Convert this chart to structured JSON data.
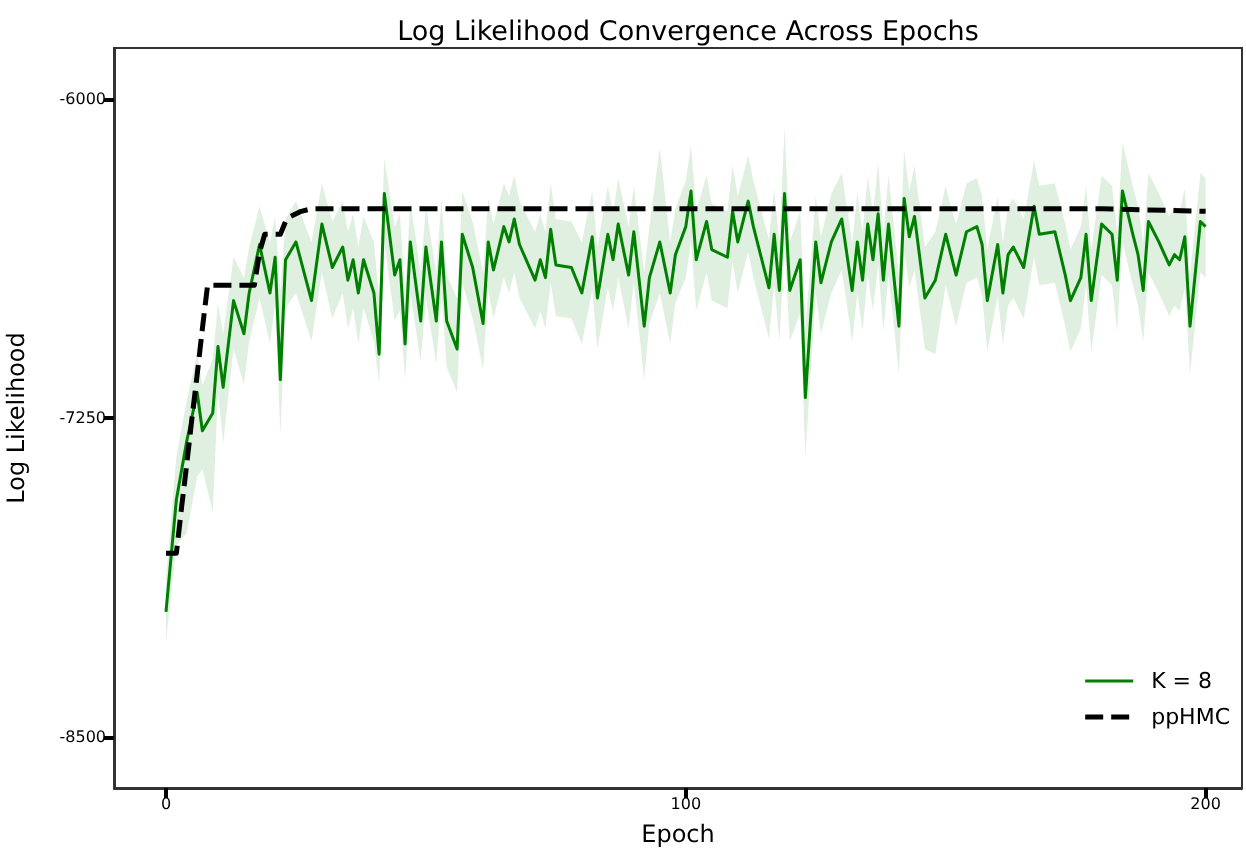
{
  "chart_data": {
    "type": "line",
    "title": "Log Likelihood Convergence Across Epochs",
    "xlabel": "Epoch",
    "ylabel": "Log Likelihood",
    "xlim": [
      -10,
      207
    ],
    "ylim": [
      -8700,
      -5800
    ],
    "xticks": [
      0,
      100,
      200
    ],
    "yticks": [
      -8500,
      -7250,
      -6000
    ],
    "legend": "bottom right",
    "series": [
      {
        "name": "K = 8",
        "color": "#008000",
        "line_style": "solid",
        "x": [
          0,
          2,
          4,
          6,
          7,
          9,
          10,
          11,
          13,
          15,
          16,
          18,
          20,
          21,
          22,
          23,
          25,
          28,
          30,
          32,
          34,
          35,
          36,
          37,
          38,
          40,
          41,
          42,
          44,
          45,
          46,
          47,
          49,
          50,
          52,
          53,
          54,
          56,
          57,
          59,
          61,
          62,
          63,
          65,
          66,
          67,
          68,
          71,
          72,
          73,
          74,
          75,
          78,
          80,
          82,
          83,
          85,
          86,
          87,
          89,
          90,
          92,
          93,
          95,
          97,
          98,
          100,
          101,
          102,
          104,
          105,
          108,
          109,
          110,
          112,
          113,
          116,
          117,
          118,
          119,
          120,
          122,
          123,
          125,
          126,
          128,
          130,
          132,
          133,
          134,
          135,
          136,
          137,
          138,
          139,
          141,
          142,
          143,
          144,
          146,
          148,
          150,
          151,
          152,
          154,
          156,
          157,
          158,
          160,
          161,
          162,
          163,
          165,
          167,
          168,
          171,
          173,
          174,
          176,
          177,
          178,
          180,
          182,
          183,
          184,
          186,
          187,
          188,
          189,
          191,
          193,
          194,
          195,
          196,
          197,
          199,
          200
        ],
        "values": [
          -8010,
          -7570,
          -7340,
          -7150,
          -7300,
          -7230,
          -6970,
          -7130,
          -6790,
          -6920,
          -6760,
          -6570,
          -6760,
          -6620,
          -7100,
          -6630,
          -6560,
          -6790,
          -6490,
          -6660,
          -6580,
          -6710,
          -6630,
          -6760,
          -6630,
          -6760,
          -7000,
          -6370,
          -6690,
          -6630,
          -6960,
          -6560,
          -6870,
          -6580,
          -6870,
          -6560,
          -6870,
          -6980,
          -6530,
          -6660,
          -6880,
          -6560,
          -6670,
          -6500,
          -6560,
          -6470,
          -6570,
          -6710,
          -6630,
          -6700,
          -6510,
          -6650,
          -6660,
          -6760,
          -6540,
          -6780,
          -6530,
          -6630,
          -6490,
          -6690,
          -6520,
          -6890,
          -6700,
          -6560,
          -6760,
          -6610,
          -6500,
          -6360,
          -6630,
          -6480,
          -6590,
          -6620,
          -6440,
          -6560,
          -6400,
          -6500,
          -6740,
          -6530,
          -6750,
          -6370,
          -6750,
          -6630,
          -7170,
          -6560,
          -6720,
          -6560,
          -6470,
          -6750,
          -6560,
          -6710,
          -6490,
          -6630,
          -6450,
          -6710,
          -6490,
          -6890,
          -6390,
          -6540,
          -6460,
          -6780,
          -6710,
          -6530,
          -6610,
          -6690,
          -6520,
          -6500,
          -6570,
          -6790,
          -6570,
          -6760,
          -6610,
          -6580,
          -6660,
          -6420,
          -6530,
          -6520,
          -6690,
          -6790,
          -6700,
          -6530,
          -6790,
          -6490,
          -6530,
          -6710,
          -6360,
          -6530,
          -6610,
          -6750,
          -6480,
          -6560,
          -6650,
          -6610,
          -6630,
          -6540,
          -6890,
          -6480,
          -6500
        ],
        "upper": [
          -7880,
          -7400,
          -7180,
          -7000,
          -7120,
          -7020,
          -6800,
          -6920,
          -6620,
          -6700,
          -6580,
          -6420,
          -6560,
          -6460,
          -6750,
          -6470,
          -6400,
          -6560,
          -6330,
          -6480,
          -6400,
          -6520,
          -6450,
          -6580,
          -6460,
          -6560,
          -6780,
          -6230,
          -6500,
          -6450,
          -6760,
          -6400,
          -6680,
          -6420,
          -6680,
          -6390,
          -6690,
          -6780,
          -6360,
          -6480,
          -6680,
          -6390,
          -6490,
          -6330,
          -6380,
          -6300,
          -6400,
          -6520,
          -6450,
          -6520,
          -6330,
          -6470,
          -6480,
          -6560,
          -6360,
          -6580,
          -6340,
          -6450,
          -6310,
          -6500,
          -6340,
          -6680,
          -6500,
          -6190,
          -6560,
          -6430,
          -6320,
          -6180,
          -6440,
          -6300,
          -6410,
          -6440,
          -6260,
          -6380,
          -6220,
          -6320,
          -6550,
          -6350,
          -6560,
          -6110,
          -6560,
          -6440,
          -6900,
          -6380,
          -6540,
          -6370,
          -6290,
          -6560,
          -6370,
          -6520,
          -6300,
          -6450,
          -6250,
          -6520,
          -6300,
          -6690,
          -6200,
          -6360,
          -6260,
          -6580,
          -6520,
          -6340,
          -6420,
          -6490,
          -6330,
          -6310,
          -6380,
          -6590,
          -6380,
          -6560,
          -6420,
          -6390,
          -6470,
          -6240,
          -6340,
          -6330,
          -6490,
          -6590,
          -6500,
          -6340,
          -6590,
          -6300,
          -6340,
          -6520,
          -6170,
          -6340,
          -6420,
          -6560,
          -6290,
          -6370,
          -6460,
          -6420,
          -6440,
          -6350,
          -6690,
          -6290,
          -6310
        ],
        "lower": [
          -8130,
          -7750,
          -7700,
          -7480,
          -7450,
          -7620,
          -7150,
          -7350,
          -6980,
          -7120,
          -6950,
          -6780,
          -6960,
          -6800,
          -7320,
          -6820,
          -6760,
          -6950,
          -6680,
          -6860,
          -6760,
          -6900,
          -6820,
          -6960,
          -6820,
          -6950,
          -7120,
          -6560,
          -6870,
          -6830,
          -7100,
          -6760,
          -7030,
          -6780,
          -7040,
          -6760,
          -7050,
          -7150,
          -6720,
          -6860,
          -7060,
          -6750,
          -6860,
          -6700,
          -6760,
          -6680,
          -6780,
          -6900,
          -6830,
          -6900,
          -6720,
          -6850,
          -6860,
          -6960,
          -6750,
          -6980,
          -6740,
          -6830,
          -6700,
          -6900,
          -6720,
          -7100,
          -6880,
          -6760,
          -6960,
          -6800,
          -6700,
          -6560,
          -6830,
          -6680,
          -6790,
          -6820,
          -6640,
          -6760,
          -6600,
          -6700,
          -6940,
          -6730,
          -6950,
          -6580,
          -6950,
          -6840,
          -7400,
          -6760,
          -6920,
          -6760,
          -6670,
          -6950,
          -6760,
          -6910,
          -6690,
          -6830,
          -6650,
          -6910,
          -6690,
          -7080,
          -6590,
          -6740,
          -6670,
          -6980,
          -7000,
          -6730,
          -6810,
          -6890,
          -6720,
          -6700,
          -6770,
          -6990,
          -6770,
          -6960,
          -6810,
          -6780,
          -6860,
          -6620,
          -6730,
          -6720,
          -6890,
          -6990,
          -6900,
          -6730,
          -6990,
          -6690,
          -6730,
          -6910,
          -6560,
          -6730,
          -6810,
          -6950,
          -6680,
          -6760,
          -6850,
          -6810,
          -6830,
          -6740,
          -7080,
          -6680,
          -6700
        ]
      },
      {
        "name": "ppHMC",
        "color": "#000000",
        "line_style": "dashed",
        "x": [
          0,
          2,
          3,
          4,
          5,
          6,
          7,
          8,
          17,
          18,
          19,
          22,
          23,
          24,
          26,
          28,
          40,
          60,
          80,
          100,
          120,
          140,
          160,
          180,
          200
        ],
        "values": [
          -7780,
          -7780,
          -7600,
          -7430,
          -7250,
          -7080,
          -6900,
          -6730,
          -6730,
          -6600,
          -6530,
          -6530,
          -6480,
          -6460,
          -6440,
          -6430,
          -6430,
          -6430,
          -6430,
          -6430,
          -6430,
          -6430,
          -6430,
          -6430,
          -6440
        ]
      }
    ]
  }
}
